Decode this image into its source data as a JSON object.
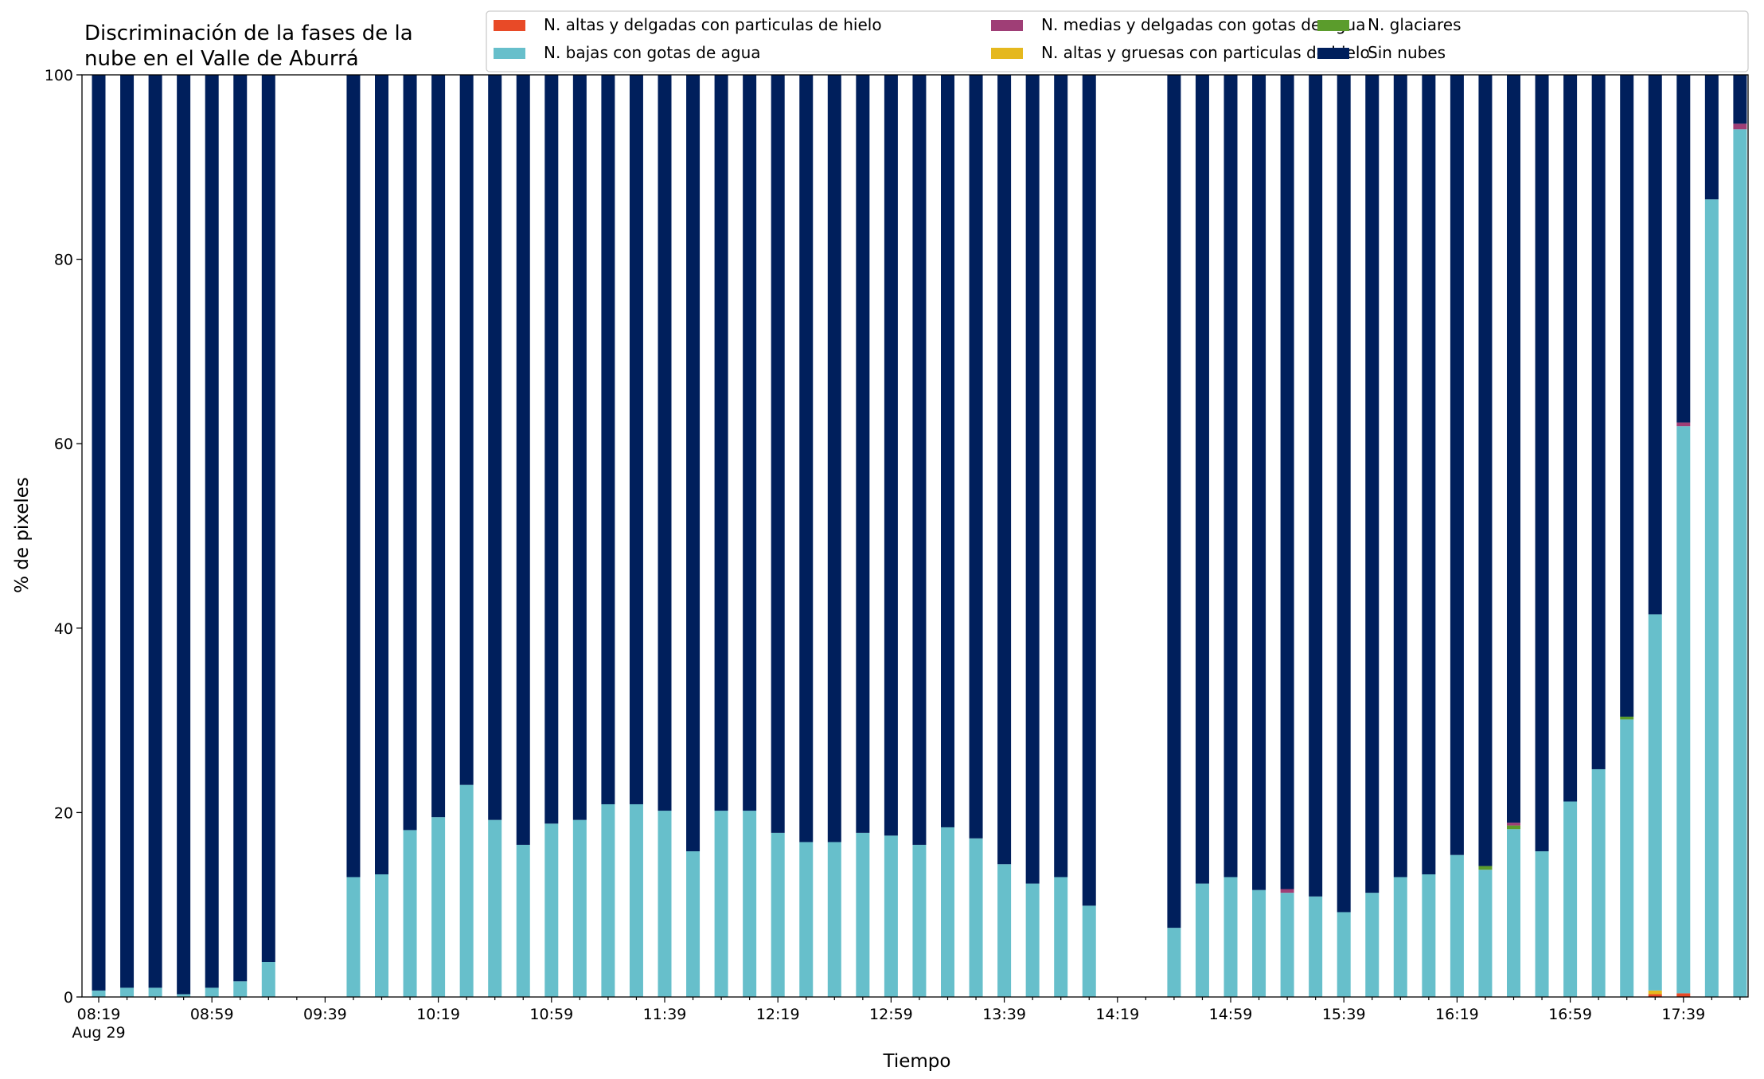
{
  "chart_data": {
    "type": "bar",
    "stacked": true,
    "title_lines": [
      "Discriminación de la fases de la",
      "nube en el Valle de Aburrá"
    ],
    "xlabel": "Tiempo",
    "ylabel": "% de pixeles",
    "ylim": [
      0,
      100
    ],
    "yticks": [
      0,
      20,
      40,
      60,
      80,
      100
    ],
    "x_slots": 59,
    "xtick_labels": [
      "08:19",
      "08:59",
      "09:39",
      "10:19",
      "10:59",
      "11:39",
      "12:19",
      "12:59",
      "13:39",
      "14:19",
      "14:59",
      "15:39",
      "16:19",
      "16:59",
      "17:39"
    ],
    "xtick_date_label": "Aug 29",
    "xtick_label_every": 4,
    "legend_location": "top-right",
    "missing_slots": [
      7,
      8,
      36,
      37
    ],
    "categories": [
      "08:19",
      "08:29",
      "08:39",
      "08:49",
      "08:59",
      "09:09",
      "09:19",
      "09:29",
      "09:39",
      "09:49",
      "09:59",
      "10:09",
      "10:19",
      "10:29",
      "10:39",
      "10:49",
      "10:59",
      "11:09",
      "11:19",
      "11:29",
      "11:39",
      "11:49",
      "11:59",
      "12:09",
      "12:19",
      "12:29",
      "12:39",
      "12:49",
      "12:59",
      "13:09",
      "13:19",
      "13:29",
      "13:39",
      "13:49",
      "13:59",
      "14:09",
      "14:19",
      "14:29",
      "14:39",
      "14:49",
      "14:59",
      "15:09",
      "15:19",
      "15:29",
      "15:39",
      "15:49",
      "15:59",
      "16:09",
      "16:19",
      "16:29",
      "16:39",
      "16:49",
      "16:59",
      "17:09",
      "17:19",
      "17:29",
      "17:39",
      "17:49",
      "17:59"
    ],
    "series": [
      {
        "name": "N. altas y delgadas con particulas de hielo",
        "color": "#e84a27",
        "values": [
          0,
          0,
          0,
          0,
          0,
          0,
          0,
          null,
          null,
          0,
          0,
          0,
          0,
          0,
          0,
          0,
          0,
          0,
          0,
          0,
          0,
          0,
          0,
          0,
          0,
          0,
          0,
          0,
          0,
          0,
          0,
          0,
          0,
          0,
          0,
          0,
          null,
          null,
          0,
          0,
          0,
          0,
          0,
          0,
          0,
          0,
          0,
          0,
          0,
          0,
          0,
          0,
          0,
          0,
          0,
          0.3,
          0.4,
          0,
          0
        ]
      },
      {
        "name": "N. altas y gruesas con particulas de hielo",
        "color": "#e5b81e",
        "values": [
          0,
          0,
          0,
          0,
          0,
          0,
          0,
          null,
          null,
          0,
          0,
          0,
          0,
          0,
          0,
          0,
          0,
          0,
          0,
          0,
          0,
          0,
          0,
          0,
          0,
          0,
          0,
          0,
          0,
          0,
          0,
          0,
          0,
          0,
          0,
          0,
          null,
          null,
          0,
          0,
          0,
          0,
          0,
          0,
          0,
          0,
          0,
          0,
          0,
          0,
          0,
          0,
          0,
          0,
          0,
          0.4,
          0,
          0,
          0
        ]
      },
      {
        "name": "N. bajas con gotas de agua",
        "color": "#67bfcb",
        "values": [
          0.7,
          1.0,
          1.0,
          0.3,
          1.0,
          1.7,
          3.8,
          null,
          null,
          13.0,
          13.3,
          18.1,
          19.5,
          23.0,
          19.2,
          16.5,
          18.8,
          19.2,
          20.9,
          20.9,
          20.2,
          15.8,
          20.2,
          20.2,
          17.8,
          16.8,
          16.8,
          17.8,
          17.5,
          16.5,
          18.4,
          17.2,
          14.4,
          12.3,
          13.0,
          9.9,
          null,
          null,
          7.5,
          12.3,
          13.0,
          11.6,
          11.3,
          10.9,
          9.2,
          11.3,
          13.0,
          13.3,
          15.4,
          13.8,
          18.2,
          15.8,
          21.2,
          24.7,
          30.1,
          40.8,
          61.5,
          86.5,
          94.1
        ]
      },
      {
        "name": "N. glaciares",
        "color": "#5b9c2c",
        "values": [
          0,
          0,
          0,
          0,
          0,
          0,
          0,
          null,
          null,
          0,
          0,
          0,
          0,
          0,
          0,
          0,
          0,
          0,
          0,
          0,
          0,
          0,
          0,
          0,
          0,
          0,
          0,
          0,
          0,
          0,
          0,
          0,
          0,
          0,
          0,
          0,
          null,
          null,
          0,
          0,
          0,
          0,
          0,
          0,
          0,
          0,
          0,
          0,
          0,
          0.4,
          0.4,
          0,
          0,
          0,
          0.3,
          0,
          0,
          0,
          0
        ]
      },
      {
        "name": "N. medias y delgadas con gotas de agua",
        "color": "#9f3e76",
        "values": [
          0,
          0,
          0,
          0,
          0,
          0,
          0,
          null,
          null,
          0,
          0,
          0,
          0,
          0,
          0,
          0,
          0,
          0,
          0,
          0,
          0,
          0,
          0,
          0,
          0,
          0,
          0,
          0,
          0,
          0,
          0,
          0,
          0,
          0,
          0,
          0,
          null,
          null,
          0,
          0,
          0,
          0,
          0.4,
          0,
          0,
          0,
          0,
          0,
          0,
          0,
          0.3,
          0,
          0,
          0,
          0,
          0,
          0.4,
          0,
          0.6
        ]
      },
      {
        "name": "Sin nubes",
        "color": "#001f5c",
        "values": [
          99.3,
          99.0,
          99.0,
          99.7,
          99.0,
          98.3,
          96.2,
          null,
          null,
          87.0,
          86.7,
          81.9,
          80.5,
          77.0,
          80.8,
          83.5,
          81.2,
          80.8,
          79.1,
          79.1,
          79.8,
          84.2,
          79.8,
          79.8,
          82.2,
          83.2,
          83.2,
          82.2,
          82.5,
          83.5,
          81.6,
          82.8,
          85.6,
          87.7,
          87.0,
          90.1,
          null,
          null,
          92.5,
          87.7,
          87.0,
          88.4,
          88.3,
          89.1,
          90.8,
          88.7,
          87.0,
          86.7,
          84.6,
          85.8,
          81.1,
          84.2,
          78.8,
          75.3,
          69.6,
          58.5,
          37.7,
          13.5,
          5.3
        ]
      }
    ],
    "legend_order": [
      0,
      2,
      4,
      1,
      3,
      5
    ]
  }
}
